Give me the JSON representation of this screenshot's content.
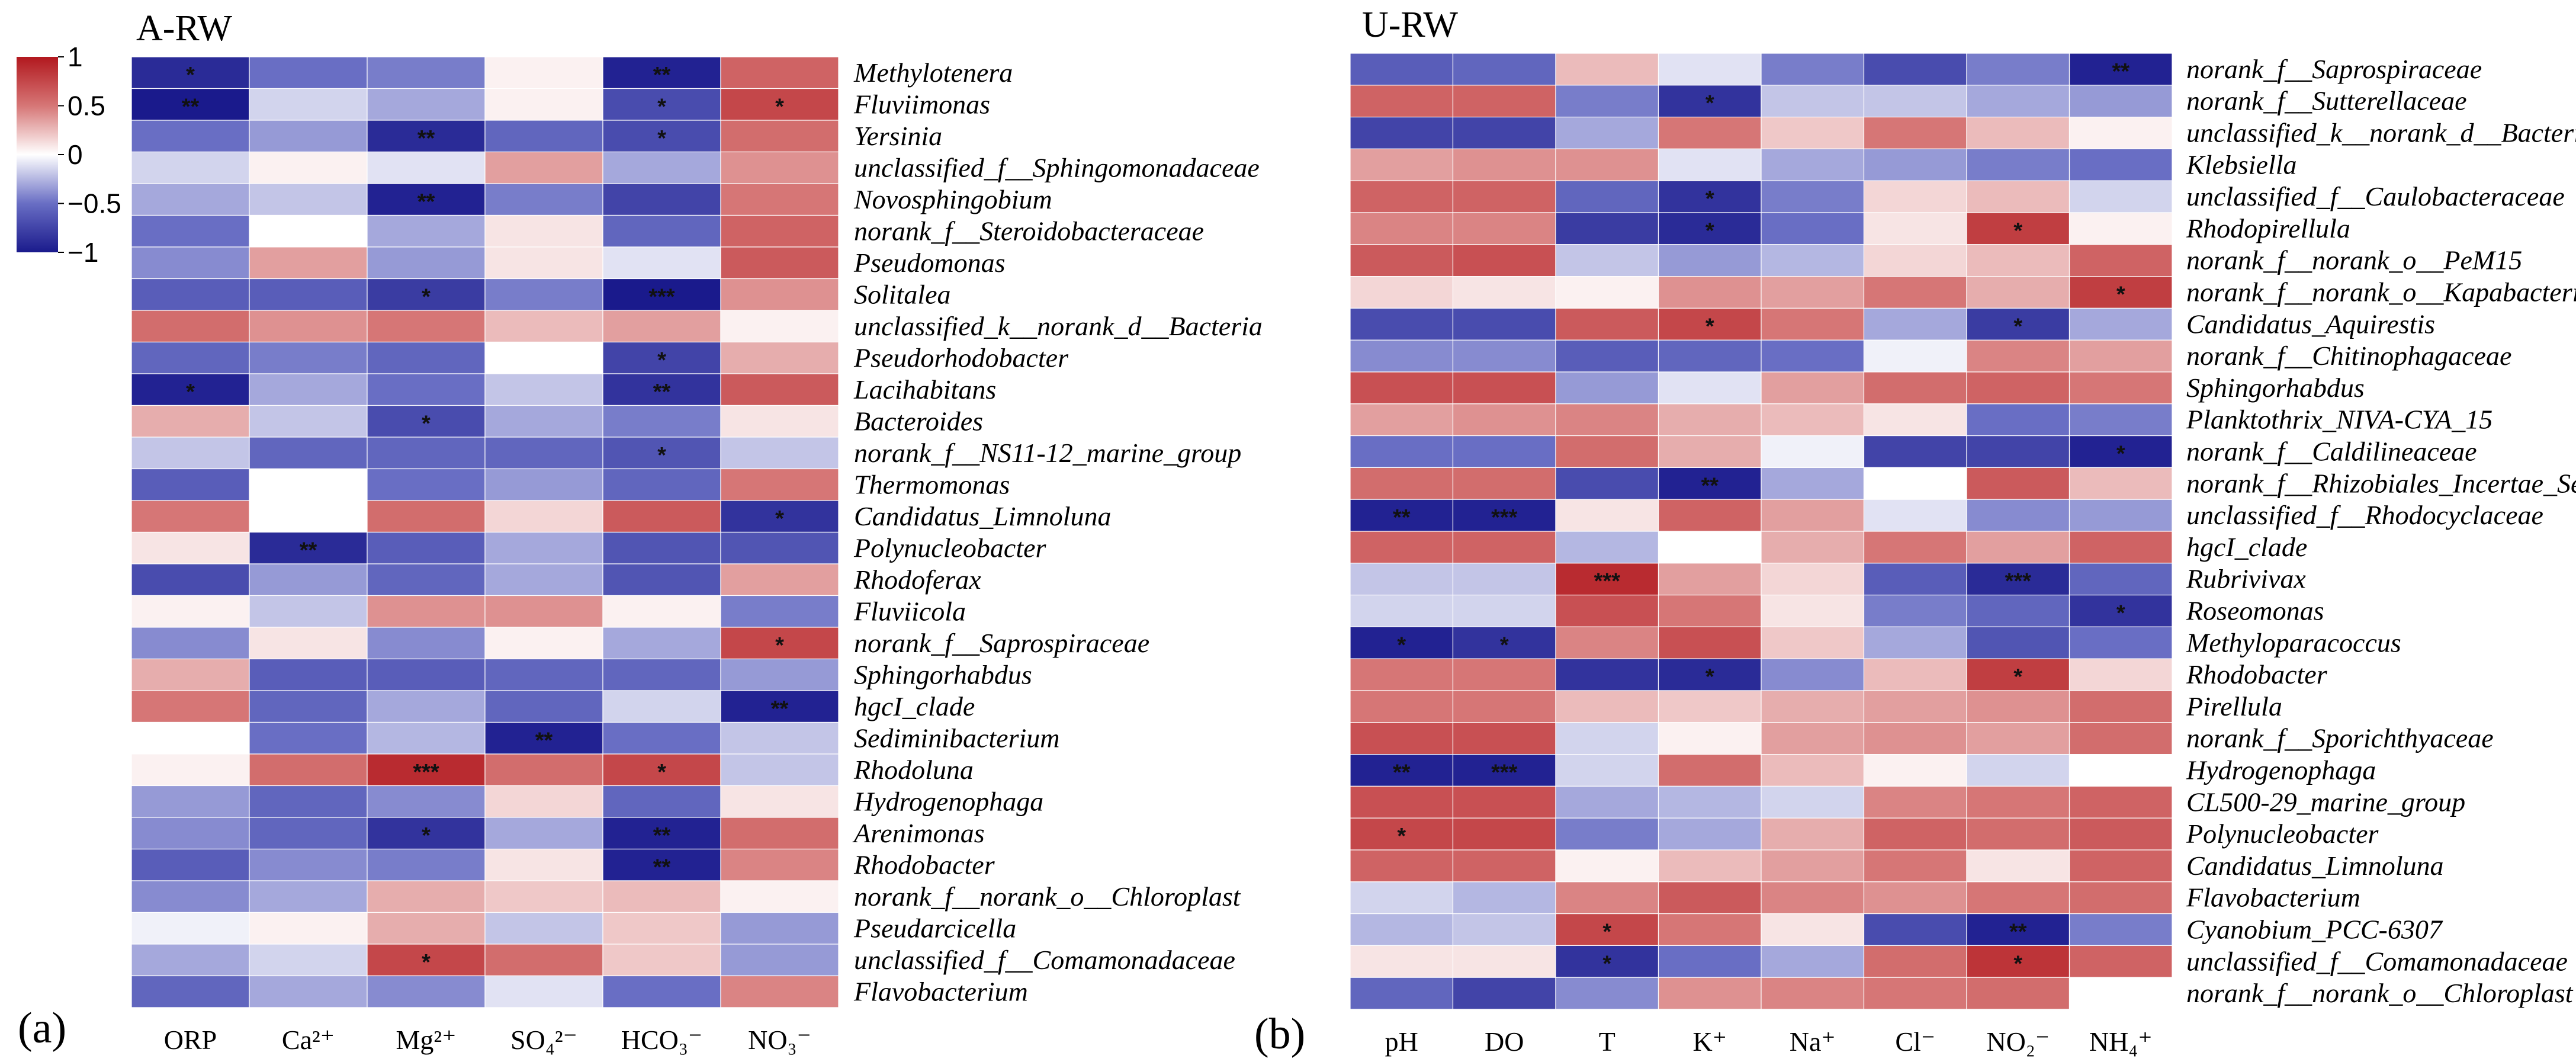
{
  "chart_data": [
    {
      "type": "heatmap",
      "panel_letter": "(a)",
      "title": "A-RW",
      "columns": [
        "ORP",
        "Ca²⁺",
        "Mg²⁺",
        "SO₄²⁻",
        "HCO₃⁻",
        "NO₃⁻"
      ],
      "rows": [
        "Methylotenera",
        "Fluviimonas",
        "Yersinia",
        "unclassified_f__Sphingomonadaceae",
        "Novosphingobium",
        "norank_f__Steroidobacteraceae",
        "Pseudomonas",
        "Solitalea",
        "unclassified_k__norank_d__Bacteria",
        "Pseudorhodobacter",
        "Lacihabitans",
        "Bacteroides",
        "norank_f__NS11-12_marine_group",
        "Thermomonas",
        "Candidatus_Limnoluna",
        "Polynucleobacter",
        "Rhodoferax",
        "Fluviicola",
        "norank_f__Saprospiraceae",
        "Sphingorhabdus",
        "hgcI_clade",
        "Sediminibacterium",
        "Rhodoluna",
        "Hydrogenophaga",
        "Arenimonas",
        "Rhodobacter",
        "norank_f__norank_o__Chloroplast",
        "Pseudarcicella",
        "unclassified_f__Comamonadaceae",
        "Flavobacterium"
      ],
      "values": [
        [
          -0.9,
          -0.5,
          -0.45,
          0.05,
          -0.95,
          0.6
        ],
        [
          -1.0,
          -0.15,
          -0.3,
          0.05,
          -0.7,
          0.75
        ],
        [
          -0.5,
          -0.35,
          -0.9,
          -0.55,
          -0.7,
          0.55
        ],
        [
          -0.15,
          0.05,
          -0.1,
          0.35,
          -0.3,
          0.4
        ],
        [
          -0.3,
          -0.2,
          -0.95,
          -0.45,
          -0.75,
          0.5
        ],
        [
          -0.5,
          0.0,
          -0.3,
          0.1,
          -0.55,
          0.6
        ],
        [
          -0.4,
          0.35,
          -0.35,
          0.1,
          -0.1,
          0.65
        ],
        [
          -0.6,
          -0.6,
          -0.8,
          -0.45,
          -1.0,
          0.4
        ],
        [
          0.55,
          0.4,
          0.5,
          0.25,
          0.35,
          0.05
        ],
        [
          -0.55,
          -0.45,
          -0.55,
          0.0,
          -0.75,
          0.3
        ],
        [
          -0.95,
          -0.3,
          -0.5,
          -0.2,
          -0.85,
          0.65
        ],
        [
          0.3,
          -0.2,
          -0.7,
          -0.3,
          -0.45,
          0.1
        ],
        [
          -0.2,
          -0.55,
          -0.55,
          -0.55,
          -0.65,
          -0.2
        ],
        [
          -0.6,
          0.0,
          -0.5,
          -0.35,
          -0.55,
          0.5
        ],
        [
          0.5,
          0.0,
          0.55,
          0.15,
          0.65,
          -0.85
        ],
        [
          0.1,
          -0.9,
          -0.6,
          -0.3,
          -0.65,
          -0.65
        ],
        [
          -0.7,
          -0.35,
          -0.55,
          -0.3,
          -0.65,
          0.35
        ],
        [
          0.05,
          -0.2,
          0.4,
          0.4,
          0.05,
          -0.45
        ],
        [
          -0.4,
          0.1,
          -0.4,
          0.05,
          -0.3,
          0.75
        ],
        [
          0.3,
          -0.6,
          -0.6,
          -0.55,
          -0.55,
          -0.35
        ],
        [
          0.5,
          -0.55,
          -0.3,
          -0.55,
          -0.15,
          -0.95
        ],
        [
          0.0,
          -0.5,
          -0.25,
          -0.95,
          -0.5,
          -0.2
        ],
        [
          0.05,
          0.55,
          0.9,
          0.55,
          0.75,
          -0.2
        ],
        [
          -0.35,
          -0.55,
          -0.4,
          0.15,
          -0.55,
          0.1
        ],
        [
          -0.4,
          -0.55,
          -0.85,
          -0.3,
          -0.95,
          0.55
        ],
        [
          -0.6,
          -0.4,
          -0.45,
          0.1,
          -0.95,
          0.45
        ],
        [
          -0.4,
          -0.3,
          0.3,
          0.2,
          0.25,
          0.05
        ],
        [
          -0.05,
          0.05,
          0.3,
          -0.2,
          0.2,
          -0.35
        ],
        [
          -0.3,
          -0.15,
          0.75,
          0.55,
          0.2,
          -0.35
        ],
        [
          -0.55,
          -0.3,
          -0.4,
          -0.1,
          -0.5,
          0.45
        ]
      ],
      "stars": [
        [
          "*",
          "",
          "",
          "",
          "**",
          ""
        ],
        [
          "**",
          "",
          "",
          "",
          "*",
          "*"
        ],
        [
          "",
          "",
          "**",
          "",
          "*",
          ""
        ],
        [
          "",
          "",
          "",
          "",
          "",
          ""
        ],
        [
          "",
          "",
          "**",
          "",
          "",
          ""
        ],
        [
          "",
          "",
          "",
          "",
          "",
          ""
        ],
        [
          "",
          "",
          "",
          "",
          "",
          ""
        ],
        [
          "",
          "",
          "*",
          "",
          "***",
          ""
        ],
        [
          "",
          "",
          "",
          "",
          "",
          ""
        ],
        [
          "",
          "",
          "",
          "",
          "*",
          ""
        ],
        [
          "*",
          "",
          "",
          "",
          "**",
          ""
        ],
        [
          "",
          "",
          "*",
          "",
          "",
          ""
        ],
        [
          "",
          "",
          "",
          "",
          "*",
          ""
        ],
        [
          "",
          "",
          "",
          "",
          "",
          ""
        ],
        [
          "",
          "",
          "",
          "",
          "",
          "*"
        ],
        [
          "",
          "**",
          "",
          "",
          "",
          ""
        ],
        [
          "",
          "",
          "",
          "",
          "",
          ""
        ],
        [
          "",
          "",
          "",
          "",
          "",
          ""
        ],
        [
          "",
          "",
          "",
          "",
          "",
          "*"
        ],
        [
          "",
          "",
          "",
          "",
          "",
          ""
        ],
        [
          "",
          "",
          "",
          "",
          "",
          "**"
        ],
        [
          "",
          "",
          "",
          "**",
          "",
          ""
        ],
        [
          "",
          "",
          "***",
          "",
          "*",
          ""
        ],
        [
          "",
          "",
          "",
          "",
          "",
          ""
        ],
        [
          "",
          "",
          "*",
          "",
          "**",
          ""
        ],
        [
          "",
          "",
          "",
          "",
          "**",
          ""
        ],
        [
          "",
          "",
          "",
          "",
          "",
          ""
        ],
        [
          "",
          "",
          "",
          "",
          "",
          ""
        ],
        [
          "",
          "",
          "*",
          "",
          "",
          ""
        ],
        [
          "",
          "",
          "",
          "",
          "",
          ""
        ]
      ],
      "color_range": [
        -1,
        1
      ],
      "colorbar": {
        "ticks": [
          1,
          0.5,
          0,
          -0.5,
          -1
        ],
        "tick_labels": [
          "1",
          "0.5",
          "0",
          "−0.5",
          "−1"
        ]
      }
    },
    {
      "type": "heatmap",
      "panel_letter": "(b)",
      "title": "U-RW",
      "columns": [
        "pH",
        "DO",
        "T",
        "K⁺",
        "Na⁺",
        "Cl⁻",
        "NO₂⁻",
        "NH₄⁺"
      ],
      "rows": [
        "norank_f__Saprospiraceae",
        "norank_f__Sutterellaceae",
        "unclassified_k__norank_d__Bacteria",
        "Klebsiella",
        "unclassified_f__Caulobacteraceae",
        "Rhodopirellula",
        "norank_f__norank_o__PeM15",
        "norank_f__norank_o__Kapabacteriales",
        "Candidatus_Aquirestis",
        "norank_f__Chitinophagaceae",
        "Sphingorhabdus",
        "Planktothrix_NIVA-CYA_15",
        "norank_f__Caldilineaceae",
        "norank_f__Rhizobiales_Incertae_Sedis",
        "unclassified_f__Rhodocyclaceae",
        "hgcI_clade",
        "Rubrivivax",
        "Roseomonas",
        "Methyloparacoccus",
        "Rhodobacter",
        "Pirellula",
        "norank_f__Sporichthyaceae",
        "Hydrogenophaga",
        "CL500-29_marine_group",
        "Polynucleobacter",
        "Candidatus_Limnoluna",
        "Flavobacterium",
        "Cyanobium_PCC-6307",
        "unclassified_f__Comamonadaceae",
        "norank_f__norank_o__Chloroplast"
      ],
      "values": [
        [
          -0.6,
          -0.55,
          0.25,
          -0.1,
          -0.45,
          -0.7,
          -0.45,
          -0.95
        ],
        [
          0.6,
          0.6,
          -0.45,
          -0.85,
          -0.2,
          -0.2,
          -0.3,
          -0.35
        ],
        [
          -0.75,
          -0.75,
          -0.3,
          0.5,
          0.2,
          0.5,
          0.25,
          0.05
        ],
        [
          0.35,
          0.4,
          0.4,
          -0.1,
          -0.3,
          -0.35,
          -0.45,
          -0.5
        ],
        [
          0.6,
          0.6,
          -0.55,
          -0.85,
          -0.45,
          0.15,
          0.25,
          -0.15
        ],
        [
          0.45,
          0.45,
          -0.8,
          -0.9,
          -0.5,
          0.1,
          0.8,
          0.05
        ],
        [
          0.65,
          0.7,
          -0.2,
          -0.35,
          -0.25,
          0.15,
          0.25,
          0.6
        ],
        [
          0.15,
          0.1,
          0.05,
          0.4,
          0.35,
          0.5,
          0.3,
          0.8
        ],
        [
          -0.7,
          -0.7,
          0.65,
          0.75,
          0.5,
          -0.3,
          -0.8,
          -0.3
        ],
        [
          -0.4,
          -0.4,
          -0.6,
          -0.55,
          -0.5,
          -0.05,
          0.45,
          0.35
        ],
        [
          0.7,
          0.7,
          -0.35,
          -0.1,
          0.35,
          0.55,
          0.6,
          0.5
        ],
        [
          0.35,
          0.4,
          0.45,
          0.3,
          0.25,
          0.1,
          -0.5,
          -0.45
        ],
        [
          -0.5,
          -0.5,
          0.55,
          0.3,
          -0.05,
          -0.75,
          -0.75,
          -0.95
        ],
        [
          0.55,
          0.55,
          -0.7,
          -0.95,
          -0.3,
          0.0,
          0.65,
          0.25
        ],
        [
          -0.95,
          -0.95,
          0.1,
          0.6,
          0.35,
          -0.1,
          -0.4,
          -0.35
        ],
        [
          0.6,
          0.6,
          -0.25,
          0.0,
          0.3,
          0.5,
          0.35,
          0.6
        ],
        [
          -0.2,
          -0.2,
          0.9,
          0.35,
          0.15,
          -0.6,
          -0.9,
          -0.55
        ],
        [
          -0.15,
          -0.15,
          0.7,
          0.5,
          0.1,
          -0.45,
          -0.55,
          -0.85
        ],
        [
          -0.95,
          -0.85,
          0.45,
          0.7,
          0.2,
          -0.3,
          -0.65,
          -0.5
        ],
        [
          0.5,
          0.5,
          -0.85,
          -0.9,
          -0.4,
          0.25,
          0.8,
          0.15
        ],
        [
          0.5,
          0.5,
          0.25,
          0.2,
          0.3,
          0.35,
          0.4,
          0.55
        ],
        [
          0.7,
          0.7,
          -0.15,
          0.05,
          0.35,
          0.4,
          0.35,
          0.55
        ],
        [
          -0.95,
          -0.95,
          -0.15,
          0.55,
          0.25,
          0.05,
          -0.15,
          0.0
        ],
        [
          0.7,
          0.7,
          -0.3,
          -0.25,
          -0.15,
          0.45,
          0.5,
          0.6
        ],
        [
          0.75,
          0.75,
          -0.45,
          -0.3,
          0.3,
          0.6,
          0.55,
          0.65
        ],
        [
          0.6,
          0.6,
          0.05,
          0.25,
          0.35,
          0.5,
          0.1,
          0.6
        ],
        [
          -0.15,
          -0.25,
          0.45,
          0.65,
          0.45,
          0.4,
          0.5,
          0.55
        ],
        [
          -0.25,
          -0.2,
          0.75,
          0.5,
          0.1,
          -0.7,
          -0.95,
          -0.45
        ],
        [
          0.1,
          0.1,
          -0.85,
          -0.5,
          -0.3,
          0.55,
          0.85,
          0.6
        ],
        [
          -0.55,
          -0.75,
          -0.4,
          0.4,
          0.45,
          0.5,
          0.55,
          0.0
        ]
      ],
      "stars": [
        [
          "",
          "",
          "",
          "",
          "",
          "",
          "",
          "**"
        ],
        [
          "",
          "",
          "",
          "*",
          "",
          "",
          "",
          ""
        ],
        [
          "",
          "",
          "",
          "",
          "",
          "",
          "",
          ""
        ],
        [
          "",
          "",
          "",
          "",
          "",
          "",
          "",
          ""
        ],
        [
          "",
          "",
          "",
          "*",
          "",
          "",
          "",
          ""
        ],
        [
          "",
          "",
          "",
          "*",
          "",
          "",
          "*",
          ""
        ],
        [
          "",
          "",
          "",
          "",
          "",
          "",
          "",
          ""
        ],
        [
          "",
          "",
          "",
          "",
          "",
          "",
          "",
          "*"
        ],
        [
          "",
          "",
          "",
          "*",
          "",
          "",
          "*",
          ""
        ],
        [
          "",
          "",
          "",
          "",
          "",
          "",
          "",
          ""
        ],
        [
          "",
          "",
          "",
          "",
          "",
          "",
          "",
          ""
        ],
        [
          "",
          "",
          "",
          "",
          "",
          "",
          "",
          ""
        ],
        [
          "",
          "",
          "",
          "",
          "",
          "",
          "",
          "*"
        ],
        [
          "",
          "",
          "",
          "**",
          "",
          "",
          "",
          ""
        ],
        [
          "**",
          "***",
          "",
          "",
          "",
          "",
          "",
          ""
        ],
        [
          "",
          "",
          "",
          "",
          "",
          "",
          "",
          ""
        ],
        [
          "",
          "",
          "***",
          "",
          "",
          "",
          "***",
          ""
        ],
        [
          "",
          "",
          "",
          "",
          "",
          "",
          "",
          "*"
        ],
        [
          "*",
          "*",
          "",
          "",
          "",
          "",
          "",
          ""
        ],
        [
          "",
          "",
          "",
          "*",
          "",
          "",
          "*",
          ""
        ],
        [
          "",
          "",
          "",
          "",
          "",
          "",
          "",
          ""
        ],
        [
          "",
          "",
          "",
          "",
          "",
          "",
          "",
          ""
        ],
        [
          "**",
          "***",
          "",
          "",
          "",
          "",
          "",
          ""
        ],
        [
          "",
          "",
          "",
          "",
          "",
          "",
          "",
          ""
        ],
        [
          "*",
          "",
          "",
          "",
          "",
          "",
          "",
          ""
        ],
        [
          "",
          "",
          "",
          "",
          "",
          "",
          "",
          ""
        ],
        [
          "",
          "",
          "",
          "",
          "",
          "",
          "",
          ""
        ],
        [
          "",
          "",
          "*",
          "",
          "",
          "",
          "**",
          ""
        ],
        [
          "",
          "",
          "*",
          "",
          "",
          "",
          "*",
          ""
        ],
        [
          "",
          "",
          "",
          "",
          "",
          "",
          "",
          ""
        ]
      ],
      "color_range": [
        -1,
        1
      ]
    }
  ]
}
